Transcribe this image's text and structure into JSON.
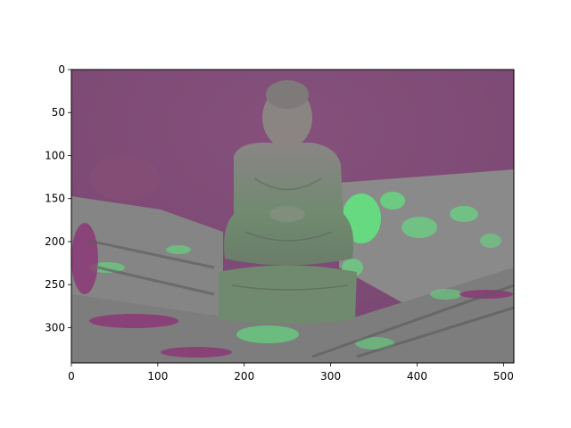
{
  "chart_data": {
    "type": "image",
    "title": "",
    "xlabel": "",
    "ylabel": "",
    "image_description_hidden": true,
    "image_extent": {
      "x": [
        0,
        512
      ],
      "y": [
        341,
        0
      ]
    },
    "xlim": [
      0,
      512
    ],
    "ylim": [
      341,
      0
    ],
    "x_ticks": [
      0,
      100,
      200,
      300,
      400,
      500
    ],
    "x_tick_labels": [
      "0",
      "100",
      "200",
      "300",
      "400",
      "500"
    ],
    "y_ticks": [
      0,
      50,
      100,
      150,
      200,
      250,
      300
    ],
    "y_tick_labels": [
      "0",
      "50",
      "100",
      "150",
      "200",
      "250",
      "300"
    ],
    "grid": false,
    "colors": {
      "sky": "#7e4a76",
      "wall": "#6f6a6f",
      "statue": "#6f8a6a",
      "highlight": "#5fe67f",
      "ground": "#7f7f7f"
    }
  }
}
